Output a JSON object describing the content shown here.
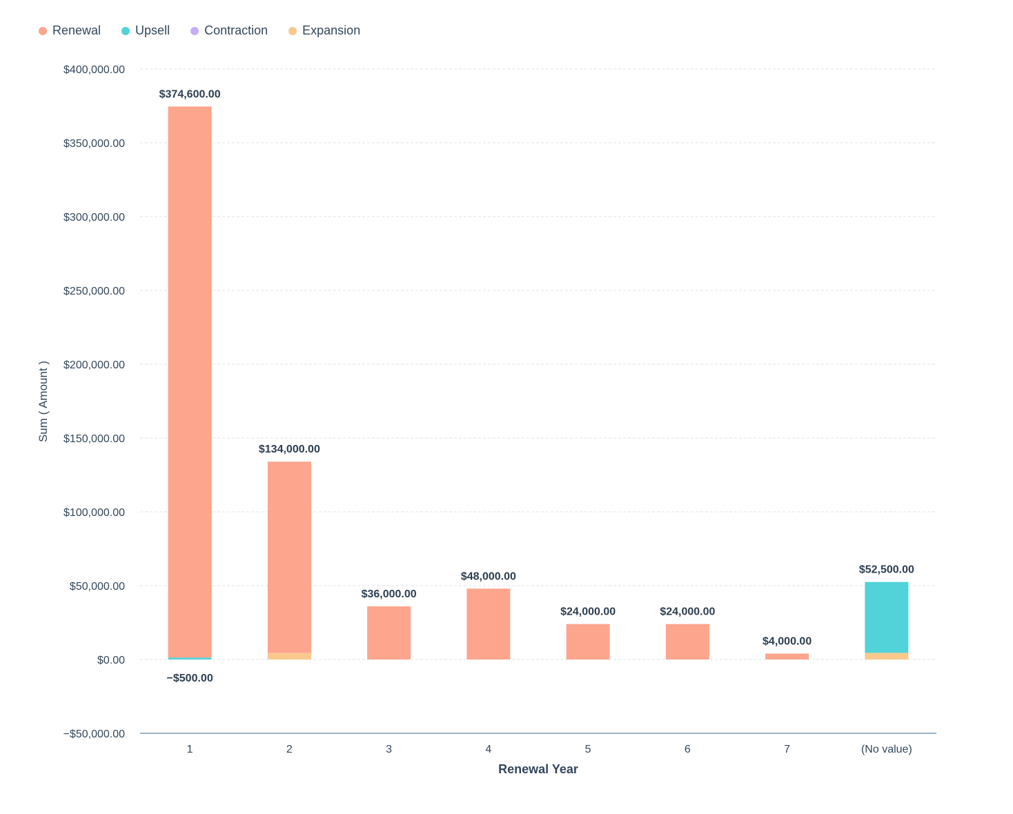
{
  "chart_data": {
    "type": "bar",
    "stacked": true,
    "title": "",
    "xlabel": "Renewal Year",
    "ylabel": "Sum ( Amount )",
    "ylim": [
      -50000,
      400000
    ],
    "y_ticks": [
      -50000,
      0,
      50000,
      100000,
      150000,
      200000,
      250000,
      300000,
      350000,
      400000
    ],
    "y_tick_labels": [
      "−$50,000.00",
      "$0.00",
      "$50,000.00",
      "$100,000.00",
      "$150,000.00",
      "$200,000.00",
      "$250,000.00",
      "$300,000.00",
      "$350,000.00",
      "$400,000.00"
    ],
    "grid": true,
    "legend_position": "top-left",
    "categories": [
      "1",
      "2",
      "3",
      "4",
      "5",
      "6",
      "7",
      "(No value)"
    ],
    "series": [
      {
        "name": "Renewal",
        "color": "#fea58e",
        "values": [
          373300,
          129500,
          36000,
          48000,
          24000,
          24000,
          4000,
          0
        ]
      },
      {
        "name": "Upsell",
        "color": "#51d3d9",
        "values": [
          1300,
          0,
          0,
          0,
          0,
          0,
          0,
          48000
        ]
      },
      {
        "name": "Contraction",
        "color": "#c5aef8",
        "values": [
          -500,
          0,
          0,
          0,
          0,
          0,
          0,
          0
        ]
      },
      {
        "name": "Expansion",
        "color": "#f8c88d",
        "values": [
          0,
          4500,
          0,
          0,
          0,
          0,
          0,
          4500
        ]
      }
    ],
    "stack_order_bottom_to_top": [
      "Expansion",
      "Upsell",
      "Renewal"
    ],
    "totals": [
      374600,
      134000,
      36000,
      48000,
      24000,
      24000,
      4000,
      52500
    ],
    "total_labels": [
      "$374,600.00",
      "$134,000.00",
      "$36,000.00",
      "$48,000.00",
      "$24,000.00",
      "$24,000.00",
      "$4,000.00",
      "$52,500.00"
    ],
    "negative_total_labels": [
      "−$500.00",
      "",
      "",
      "",
      "",
      "",
      "",
      ""
    ]
  }
}
